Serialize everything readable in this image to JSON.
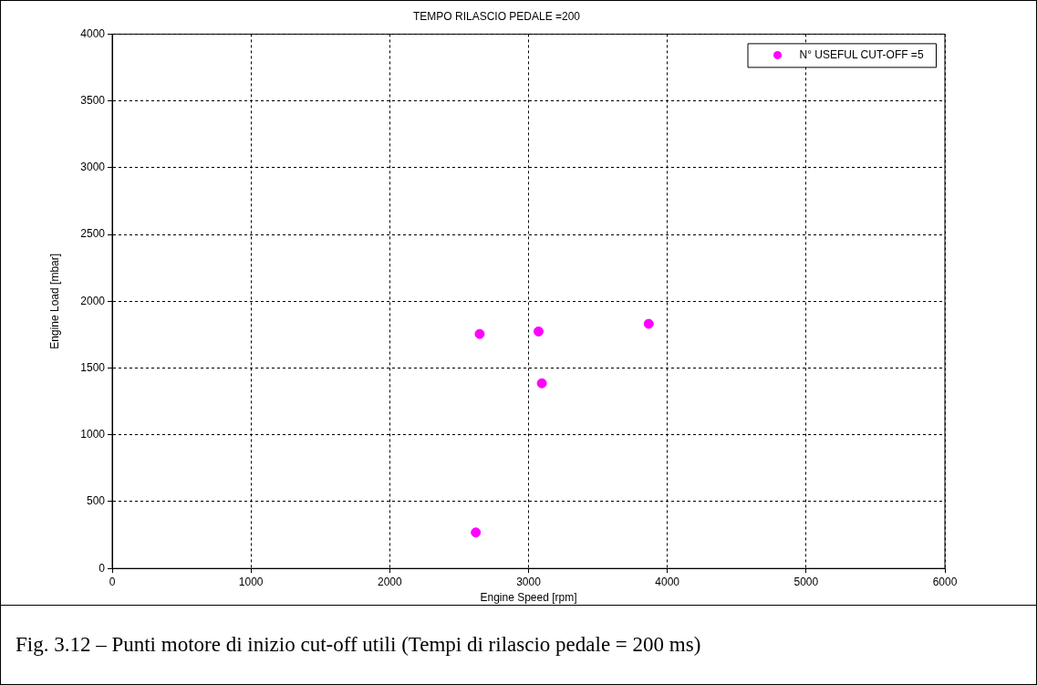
{
  "chart_data": {
    "type": "scatter",
    "title": "TEMPO RILASCIO PEDALE =200",
    "xlabel": "Engine Speed [rpm]",
    "ylabel": "Engine Load [mbar]",
    "x": [
      2648,
      3072,
      3866,
      3096,
      2620
    ],
    "series": [
      {
        "name": "N° USEFUL CUT-OFF =5",
        "color": "#ff00ff",
        "values": [
          1755,
          1774,
          1831,
          1386,
          269
        ]
      }
    ],
    "xlim": [
      0,
      6000
    ],
    "xticks": [
      0,
      1000,
      2000,
      3000,
      4000,
      5000,
      6000
    ],
    "ylim": [
      0,
      4000
    ],
    "yticks": [
      0,
      500,
      1000,
      1500,
      2000,
      2500,
      3000,
      3500,
      4000
    ],
    "grid": true,
    "legend": "top right",
    "marker": "circle",
    "annotations": [
      "Fig. 3.12 – Punti motore di inizio cut-off utili (Tempi di rilascio pedale = 200 ms)"
    ]
  }
}
